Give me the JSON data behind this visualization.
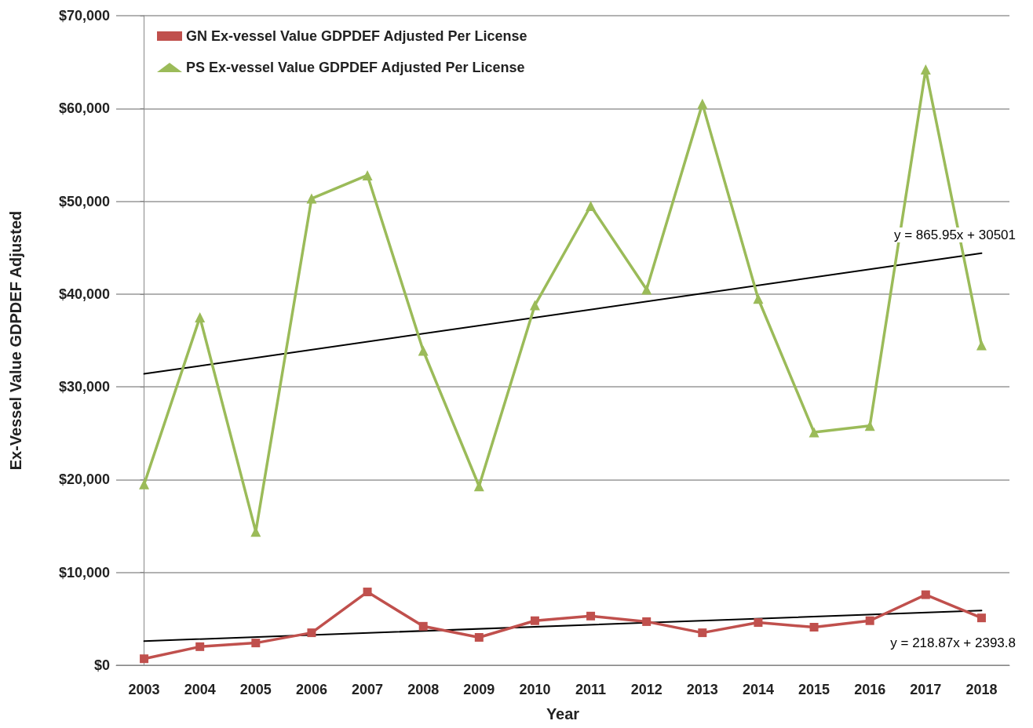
{
  "chart_data": {
    "type": "line",
    "xlabel": "Year",
    "ylabel": "Ex-Vessel Value GDPDEF Adjusted",
    "categories": [
      "2003",
      "2004",
      "2005",
      "2006",
      "2007",
      "2008",
      "2009",
      "2010",
      "2011",
      "2012",
      "2013",
      "2014",
      "2015",
      "2016",
      "2017",
      "2018"
    ],
    "series": [
      {
        "name": "GN Ex-vessel Value GDPDEF Adjusted Per License",
        "color": "#c0504d",
        "marker": "square",
        "values": [
          700,
          2000,
          2400,
          3500,
          7900,
          4200,
          3000,
          4800,
          5300,
          4700,
          3500,
          4600,
          4100,
          4800,
          7600,
          5100
        ]
      },
      {
        "name": "PS Ex-vessel Value GDPDEF Adjusted Per License",
        "color": "#9bbb59",
        "marker": "triangle",
        "values": [
          19500,
          37500,
          14400,
          50300,
          52800,
          33900,
          19300,
          38800,
          49500,
          40500,
          60500,
          39500,
          25100,
          25800,
          64200,
          34500
        ]
      },
      {
        "color": "#000000",
        "marker": "none",
        "values": [
          31400,
          null,
          null,
          null,
          null,
          null,
          null,
          null,
          null,
          null,
          null,
          null,
          null,
          null,
          null,
          44400
        ]
      },
      {
        "color": "#000000",
        "marker": "none",
        "values": [
          2600,
          null,
          null,
          null,
          null,
          null,
          null,
          null,
          null,
          null,
          null,
          null,
          null,
          null,
          null,
          5900
        ]
      }
    ],
    "ylim": [
      0,
      70000
    ],
    "yticks": [
      {
        "value": 0,
        "label": "$0"
      },
      {
        "value": 10000,
        "label": "$10,000"
      },
      {
        "value": 20000,
        "label": "$20,000"
      },
      {
        "value": 30000,
        "label": "$30,000"
      },
      {
        "value": 40000,
        "label": "$40,000"
      },
      {
        "value": 50000,
        "label": "$50,000"
      },
      {
        "value": 60000,
        "label": "$60,000"
      },
      {
        "value": 70000,
        "label": "$70,000"
      }
    ],
    "annotations": [
      "y = 865.95x + 30501",
      "y = 218.87x + 2393.8"
    ],
    "grid": "y",
    "legend": "top left",
    "line_style": "solid"
  }
}
